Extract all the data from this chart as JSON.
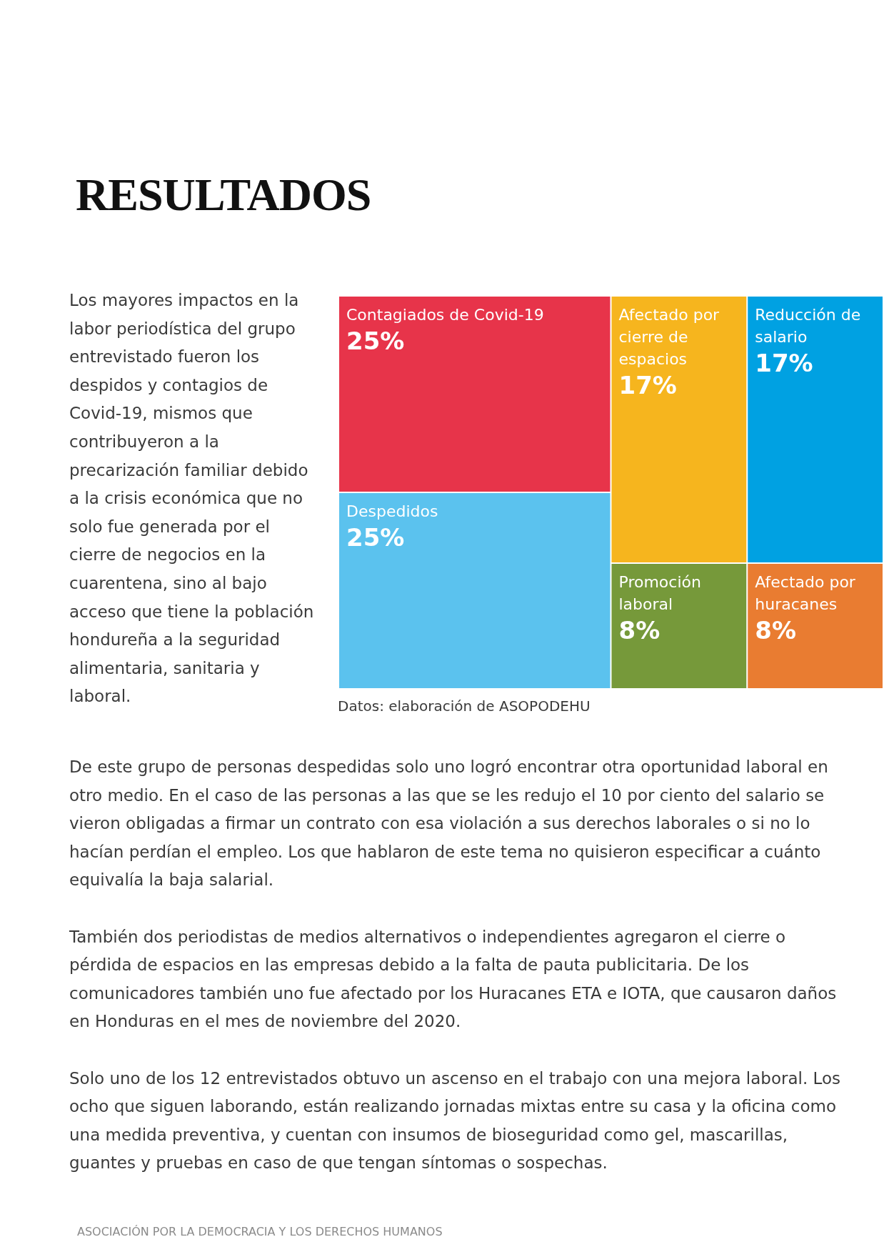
{
  "chart_data": {
    "type": "other",
    "title": "RESULTADOS",
    "categories": [
      "Contagiados de Covid-19",
      "Despedidos",
      "Afectado por cierre de espacios",
      "Reducción de salario",
      "Promoción laboral",
      "Afectado por huracanes"
    ],
    "values": [
      25,
      25,
      17,
      17,
      8,
      8
    ],
    "value_labels": [
      "25%",
      "25%",
      "17%",
      "17%",
      "8%",
      "8%"
    ],
    "colors": [
      "#e7344a",
      "#5bc2ee",
      "#f6b51e",
      "#00a1e2",
      "#76993a",
      "#e97c31"
    ],
    "annotations": [
      "Los mayores impactos en la labor periodística del grupo entrevistado fueron los despidos y contagios de Covid-19, mismos que contribuyeron a la precarización familiar debido a la crisis económica que no solo fue generada por el cierre de negocios en la cuarentena, sino al bajo acceso que tiene la población hondureña a la seguridad alimentaria, sanitaria y laboral.",
      "Datos: elaboración de ASOPODEHU",
      "De este grupo de personas despedidas solo uno logró encontrar otra oportunidad laboral en otro medio. En el caso de las personas a las que se les redujo el 10 por ciento del salario se vieron obligadas a firmar un contrato con esa violación a sus derechos laborales o si no lo hacían perdían el empleo. Los que hablaron de este tema no quisieron especificar a cuánto equivalía la baja salarial.",
      "También dos periodistas de medios alternativos o independientes agregaron el cierre o pérdida de espacios en las empresas debido a la falta de pauta publicitaria. De los comunicadores también uno fue afectado por los Huracanes ETA e IOTA, que causaron daños en Honduras en el mes de noviembre del 2020.",
      "Solo uno de los 12 entrevistados obtuvo un ascenso en el trabajo con una mejora laboral. Los ocho que siguen laborando,  están realizando jornadas mixtas entre su casa y la oficina como una medida preventiva,  y cuentan con insumos de bioseguridad como gel, mascarillas, guantes y pruebas en caso de que tengan síntomas o sospechas.",
      "ASOCIACIÓN POR LA DEMOCRACIA Y LOS DERECHOS HUMANOS"
    ]
  }
}
